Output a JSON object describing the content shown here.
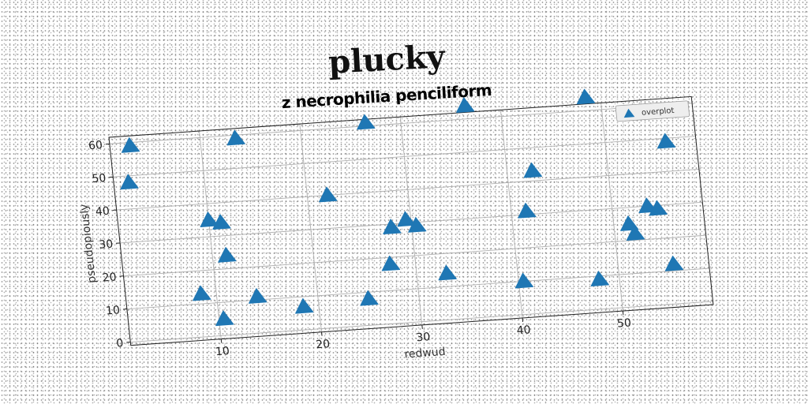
{
  "header": {
    "suptitle": "plucky"
  },
  "chart_data": {
    "type": "scatter",
    "title": "z necrophilia penciliform",
    "xlabel": "redwud",
    "ylabel": "pseudopiously",
    "xlim": [
      1,
      59
    ],
    "ylim": [
      -1,
      62
    ],
    "xticks": [
      10,
      20,
      30,
      40,
      50
    ],
    "yticks": [
      0,
      10,
      20,
      30,
      40,
      50,
      60
    ],
    "grid": true,
    "legend_position": "top-right",
    "marker": "triangle",
    "color": "#1f77b4",
    "series": [
      {
        "name": "overplot",
        "x": [
          3.0,
          2.5,
          8.5,
          10.0,
          10.5,
          11.2,
          11.4,
          13.5,
          14.0,
          18.5,
          22.0,
          25.0,
          26.5,
          27.5,
          28.0,
          29.5,
          30.5,
          33.0,
          36.5,
          40.5,
          41.5,
          42.5,
          48.0,
          48.5,
          51.5,
          52.0,
          53.5,
          54.5,
          55.5,
          56.0
        ],
        "y": [
          59,
          48,
          13,
          35,
          5,
          34,
          24,
          59,
          11,
          7,
          40,
          8,
          61,
          18,
          29,
          31,
          29,
          14,
          64,
          10,
          31,
          43,
          9,
          64,
          25,
          22,
          30,
          29,
          12,
          49
        ]
      }
    ]
  }
}
